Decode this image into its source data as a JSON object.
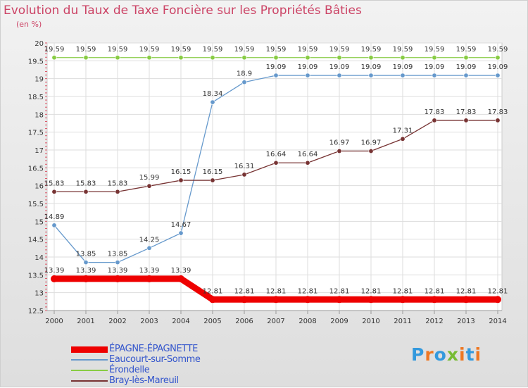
{
  "chart_data": {
    "type": "line",
    "title": "Evolution du Taux de Taxe Foncière sur les Propriétés Bâties",
    "unit_label": "(en %)",
    "x": [
      2000,
      2001,
      2002,
      2003,
      2004,
      2005,
      2006,
      2007,
      2008,
      2009,
      2010,
      2011,
      2012,
      2013,
      2014
    ],
    "x_tick_labels": [
      "2000",
      "2001",
      "2002",
      "2003",
      "2004",
      "2005",
      "2006",
      "2007",
      "2008",
      "2009",
      "2010",
      "2011",
      "2012",
      "2013",
      "2014"
    ],
    "ylim": [
      12.5,
      20
    ],
    "y_ticks": [
      12.5,
      13,
      13.5,
      14,
      14.5,
      15,
      15.5,
      16,
      16.5,
      17,
      17.5,
      18,
      18.5,
      19,
      19.5,
      20
    ],
    "y_tick_labels": [
      "12.5",
      "13",
      "13.5",
      "14",
      "14.5",
      "15",
      "15.5",
      "16",
      "16.5",
      "17",
      "17.5",
      "18",
      "18.5",
      "19",
      "19.5",
      "20"
    ],
    "grid": true,
    "legend_position": "bottom-left",
    "series": [
      {
        "name": "Érondelle",
        "color": "#88cc44",
        "bold": false,
        "values": [
          19.59,
          19.59,
          19.59,
          19.59,
          19.59,
          19.59,
          19.59,
          19.59,
          19.59,
          19.59,
          19.59,
          19.59,
          19.59,
          19.59,
          19.59
        ],
        "labels": [
          "19.59",
          "19.59",
          "19.59",
          "19.59",
          "19.59",
          "19.59",
          "19.59",
          "19.59",
          "19.59",
          "19.59",
          "19.59",
          "19.59",
          "19.59",
          "19.59",
          "19.59"
        ]
      },
      {
        "name": "Eaucourt-sur-Somme",
        "color": "#6699cc",
        "bold": false,
        "values": [
          14.89,
          13.85,
          13.85,
          14.25,
          14.67,
          18.34,
          18.9,
          19.09,
          19.09,
          19.09,
          19.09,
          19.09,
          19.09,
          19.09,
          19.09
        ],
        "labels": [
          "14.89",
          "13.85",
          "13.85",
          "14.25",
          "14.67",
          "18.34",
          "18.9",
          "19.09",
          "19.09",
          "19.09",
          "19.09",
          "19.09",
          "19.09",
          "19.09",
          "19.09"
        ]
      },
      {
        "name": "Bray-lès-Mareuil",
        "color": "#773333",
        "bold": false,
        "values": [
          15.83,
          15.83,
          15.83,
          15.99,
          16.15,
          16.15,
          16.31,
          16.64,
          16.64,
          16.97,
          16.97,
          17.31,
          17.83,
          17.83,
          17.83
        ],
        "labels": [
          "15.83",
          "15.83",
          "15.83",
          "15.99",
          "16.15",
          "16.15",
          "16.31",
          "16.64",
          "16.64",
          "16.97",
          "16.97",
          "17.31",
          "17.83",
          "17.83",
          "17.83"
        ]
      },
      {
        "name": "ÉPAGNE-ÉPAGNETTE",
        "color": "#ee0000",
        "bold": true,
        "values": [
          13.39,
          13.39,
          13.39,
          13.39,
          13.39,
          12.81,
          12.81,
          12.81,
          12.81,
          12.81,
          12.81,
          12.81,
          12.81,
          12.81,
          12.81
        ],
        "labels": [
          "13.39",
          "13.39",
          "13.39",
          "13.39",
          "13.39",
          "12.81",
          "12.81",
          "12.81",
          "12.81",
          "12.81",
          "12.81",
          "12.81",
          "12.81",
          "12.81",
          "12.81"
        ]
      }
    ]
  },
  "legend": [
    {
      "name": "ÉPAGNE-ÉPAGNETTE",
      "color": "#ee0000",
      "bold": true
    },
    {
      "name": "Eaucourt-sur-Somme",
      "color": "#6699cc",
      "bold": false
    },
    {
      "name": "Érondelle",
      "color": "#88cc44",
      "bold": false
    },
    {
      "name": "Bray-lès-Mareuil",
      "color": "#773333",
      "bold": false
    }
  ],
  "logo": {
    "text": "Proxiti",
    "colors": [
      "#3399dd",
      "#ee7722",
      "#3399dd",
      "#77bb33",
      "#ee7722",
      "#3399dd",
      "#ee7722"
    ]
  }
}
